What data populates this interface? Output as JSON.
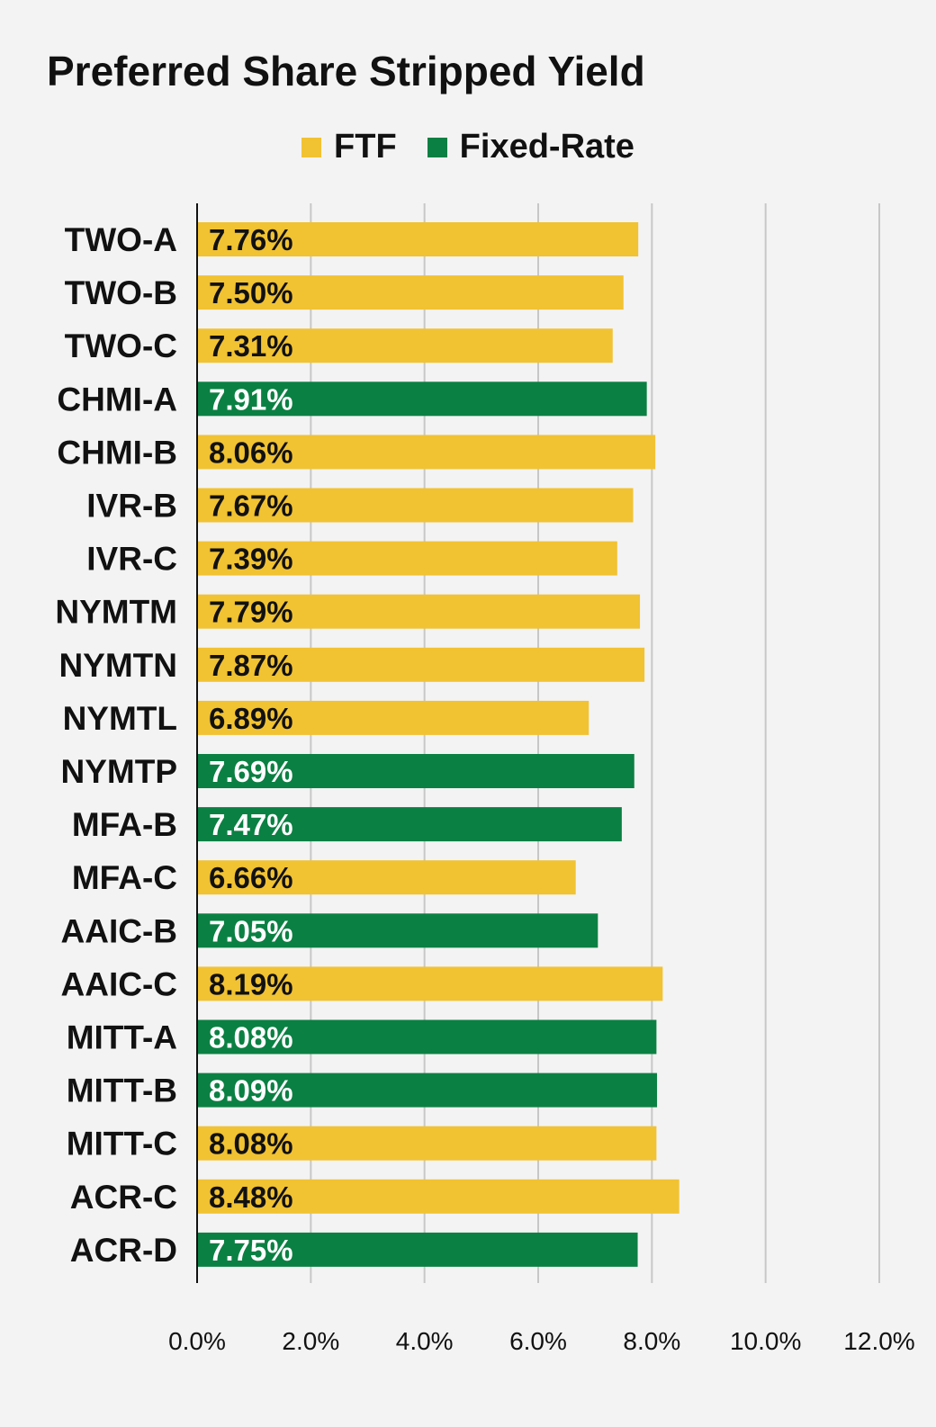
{
  "chart_data": {
    "type": "bar",
    "orientation": "horizontal",
    "title": "Preferred Share Stripped Yield",
    "xlabel": "",
    "ylabel": "",
    "xlim": [
      0,
      12
    ],
    "x_ticks": [
      "0.0%",
      "2.0%",
      "4.0%",
      "6.0%",
      "8.0%",
      "10.0%",
      "12.0%"
    ],
    "grid": true,
    "legend_placement": "top-center",
    "legend": [
      {
        "name": "FTF",
        "color": "#f1c232"
      },
      {
        "name": "Fixed-Rate",
        "color": "#0b8043"
      }
    ],
    "categories": [
      "TWO-A",
      "TWO-B",
      "TWO-C",
      "CHMI-A",
      "CHMI-B",
      "IVR-B",
      "IVR-C",
      "NYMTM",
      "NYMTN",
      "NYMTL",
      "NYMTP",
      "MFA-B",
      "MFA-C",
      "AAIC-B",
      "AAIC-C",
      "MITT-A",
      "MITT-B",
      "MITT-C",
      "ACR-C",
      "ACR-D"
    ],
    "values": [
      7.76,
      7.5,
      7.31,
      7.91,
      8.06,
      7.67,
      7.39,
      7.79,
      7.87,
      6.89,
      7.69,
      7.47,
      6.66,
      7.05,
      8.19,
      8.08,
      8.09,
      8.08,
      8.48,
      7.75
    ],
    "value_labels": [
      "7.76%",
      "7.50%",
      "7.31%",
      "7.91%",
      "8.06%",
      "7.67%",
      "7.39%",
      "7.79%",
      "7.87%",
      "6.89%",
      "7.69%",
      "7.47%",
      "6.66%",
      "7.05%",
      "8.19%",
      "8.08%",
      "8.09%",
      "8.08%",
      "8.48%",
      "7.75%"
    ],
    "bar_type": [
      "FTF",
      "FTF",
      "FTF",
      "Fixed-Rate",
      "FTF",
      "FTF",
      "FTF",
      "FTF",
      "FTF",
      "FTF",
      "Fixed-Rate",
      "Fixed-Rate",
      "FTF",
      "Fixed-Rate",
      "FTF",
      "Fixed-Rate",
      "Fixed-Rate",
      "FTF",
      "FTF",
      "Fixed-Rate"
    ]
  }
}
